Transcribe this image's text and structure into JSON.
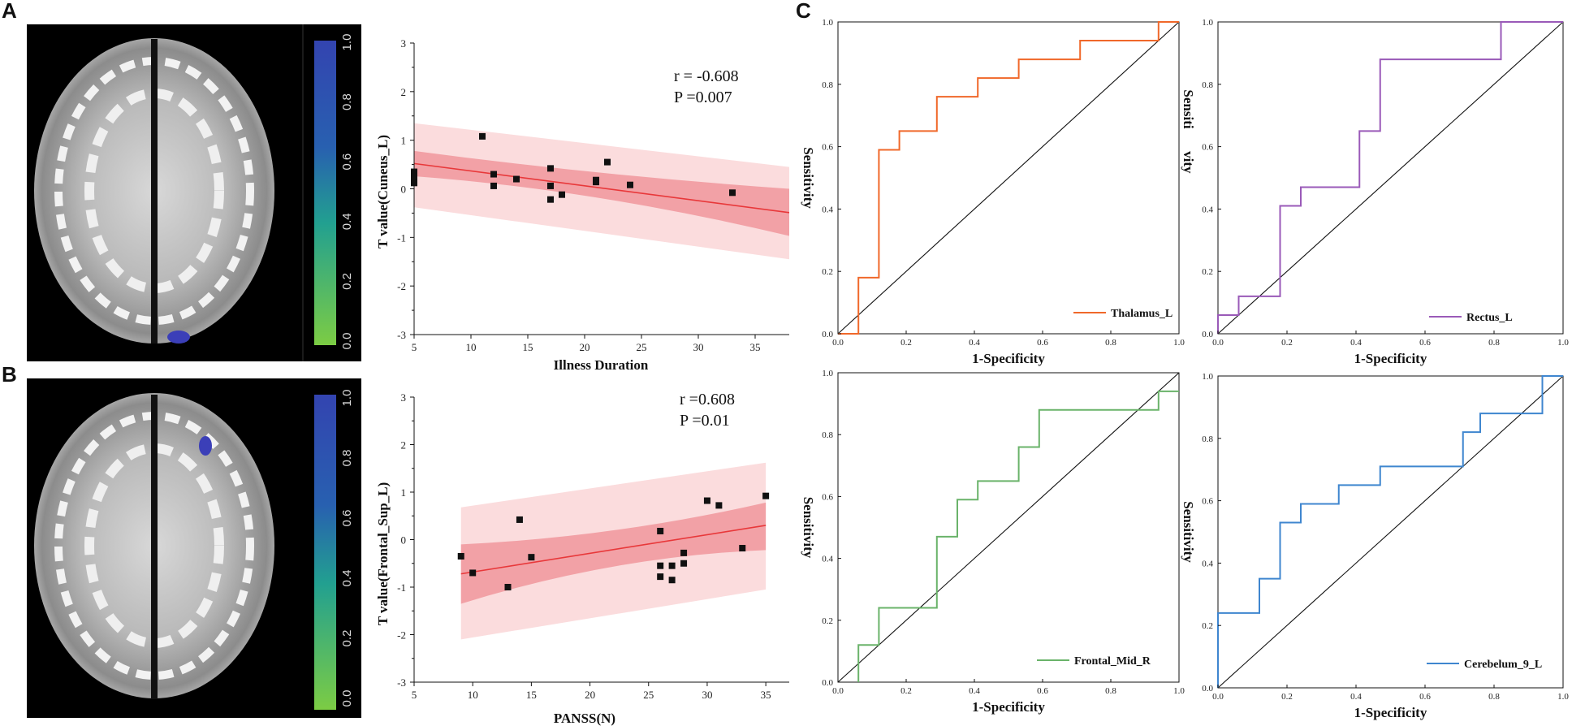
{
  "panels": {
    "a": "A",
    "b": "B",
    "c": "C"
  },
  "colors": {
    "roc_thalamus": "#f0682a",
    "roc_rectus": "#9a5ab8",
    "roc_frontal_mid": "#6ab36a",
    "roc_cerebelum": "#3f86cf",
    "regression_line": "#e8383a",
    "ci_inner": "#f19aa0",
    "ci_outer": "#fbdcdd",
    "colorbar_top": "#3344b0",
    "colorbar_bottom": "#7ccc44"
  },
  "colorbar": {
    "ticks": [
      "0.0",
      "0.2",
      "0.4",
      "0.6",
      "0.8",
      "1.0"
    ]
  },
  "chart_data": [
    {
      "type": "scatter",
      "id": "scatter-a",
      "xlabel": "Illness Duration",
      "ylabel": "T value(Cuneus_L)",
      "xlim": [
        5,
        38
      ],
      "ylim": [
        -3,
        3
      ],
      "xticks": [
        5,
        10,
        15,
        20,
        25,
        30,
        35
      ],
      "yticks": [
        3,
        2,
        1,
        0,
        -1,
        -2,
        -3
      ],
      "stats": [
        "r = -0.608",
        "P =0.007"
      ],
      "points": [
        [
          5,
          0.35
        ],
        [
          5,
          0.25
        ],
        [
          5,
          0.12
        ],
        [
          11,
          1.08
        ],
        [
          12,
          0.3
        ],
        [
          12,
          0.06
        ],
        [
          14,
          0.2
        ],
        [
          17,
          0.42
        ],
        [
          17,
          0.06
        ],
        [
          17,
          -0.22
        ],
        [
          18,
          -0.12
        ],
        [
          21,
          0.18
        ],
        [
          21,
          0.14
        ],
        [
          22,
          0.55
        ],
        [
          24,
          0.08
        ],
        [
          33,
          -0.08
        ]
      ],
      "fit": {
        "x": [
          5,
          38
        ],
        "y": [
          0.52,
          -0.49
        ]
      },
      "ci_inner": {
        "x": [
          5,
          21,
          38
        ],
        "upper": [
          0.78,
          0.28,
          0.0
        ],
        "lower": [
          0.26,
          -0.02,
          -0.97
        ]
      },
      "ci_outer": {
        "x": [
          5,
          38
        ],
        "upper": [
          1.35,
          0.45
        ],
        "lower": [
          -0.38,
          -1.45
        ]
      }
    },
    {
      "type": "scatter",
      "id": "scatter-b",
      "xlabel": "PANSS(N)",
      "ylabel": "T value(Frontal_Sup_L)",
      "xlim": [
        5,
        37
      ],
      "ylim": [
        -3,
        3
      ],
      "xticks": [
        5,
        10,
        15,
        20,
        25,
        30,
        35
      ],
      "yticks": [
        3,
        2,
        1,
        0,
        -1,
        -2,
        -3
      ],
      "stats": [
        "r =0.608",
        "P =0.01"
      ],
      "points": [
        [
          9,
          -0.35
        ],
        [
          10,
          -0.7
        ],
        [
          13,
          -1.0
        ],
        [
          14,
          0.42
        ],
        [
          15,
          -0.37
        ],
        [
          26,
          0.18
        ],
        [
          26,
          -0.55
        ],
        [
          26,
          -0.78
        ],
        [
          27,
          -0.55
        ],
        [
          27,
          -0.85
        ],
        [
          28,
          -0.5
        ],
        [
          28,
          -0.28
        ],
        [
          30,
          0.82
        ],
        [
          31,
          0.72
        ],
        [
          33,
          -0.18
        ],
        [
          35,
          0.92
        ]
      ],
      "fit": {
        "x": [
          9,
          35
        ],
        "y": [
          -0.72,
          0.3
        ]
      },
      "ci_inner": {
        "x": [
          9,
          22,
          35
        ],
        "upper": [
          -0.1,
          0.05,
          0.78
        ],
        "lower": [
          -1.35,
          -0.35,
          -0.22
        ]
      },
      "ci_outer": {
        "x": [
          9,
          35
        ],
        "upper": [
          0.68,
          1.62
        ],
        "lower": [
          -2.1,
          -1.05
        ]
      }
    },
    {
      "type": "line",
      "id": "roc-thalamus",
      "legend": "Thalamus_L",
      "xlabel": "1-Specificity",
      "ylabel": "Sensitivity",
      "xticks": [
        "0.0",
        "0.2",
        "0.4",
        "0.6",
        "0.8",
        "1.0"
      ],
      "yticks": [
        "0.0",
        "0.2",
        "0.4",
        "0.6",
        "0.8",
        "1.0"
      ],
      "x": [
        0,
        0.06,
        0.06,
        0.12,
        0.12,
        0.18,
        0.18,
        0.29,
        0.29,
        0.41,
        0.41,
        0.53,
        0.53,
        0.71,
        0.71,
        0.94,
        0.94,
        1
      ],
      "y": [
        0,
        0,
        0.18,
        0.18,
        0.59,
        0.59,
        0.65,
        0.65,
        0.76,
        0.76,
        0.82,
        0.82,
        0.88,
        0.88,
        0.94,
        0.94,
        1,
        1
      ]
    },
    {
      "type": "line",
      "id": "roc-rectus",
      "legend": "Rectus_L",
      "xlabel": "1-Specificity",
      "ylabel": "Sensitivity",
      "ylabel_parts": [
        "vity",
        "Sensiti"
      ],
      "xticks": [
        "0.0",
        "0.2",
        "0.4",
        "0.6",
        "0.8",
        "1.0"
      ],
      "yticks": [
        "0.0",
        "0.2",
        "0.4",
        "0.6",
        "0.8",
        "1.0"
      ],
      "x": [
        0,
        0,
        0.06,
        0.06,
        0.18,
        0.18,
        0.24,
        0.24,
        0.41,
        0.41,
        0.47,
        0.47,
        0.82,
        0.82,
        1
      ],
      "y": [
        0,
        0.06,
        0.06,
        0.12,
        0.12,
        0.41,
        0.41,
        0.47,
        0.47,
        0.65,
        0.65,
        0.88,
        0.88,
        1,
        1
      ]
    },
    {
      "type": "line",
      "id": "roc-frontal-mid",
      "legend": "Frontal_Mid_R",
      "xlabel": "1-Specificity",
      "ylabel": "Sensitivity",
      "xticks": [
        "0.0",
        "0.2",
        "0.4",
        "0.6",
        "0.8",
        "1.0"
      ],
      "yticks": [
        "0.0",
        "0.2",
        "0.4",
        "0.6",
        "0.8",
        "1.0"
      ],
      "x": [
        0.06,
        0.06,
        0.12,
        0.12,
        0.29,
        0.29,
        0.35,
        0.35,
        0.41,
        0.41,
        0.53,
        0.53,
        0.59,
        0.59,
        0.94,
        0.94,
        1
      ],
      "y": [
        0,
        0.12,
        0.12,
        0.24,
        0.24,
        0.47,
        0.47,
        0.59,
        0.59,
        0.65,
        0.65,
        0.76,
        0.76,
        0.88,
        0.88,
        0.94,
        0.94
      ]
    },
    {
      "type": "line",
      "id": "roc-cerebelum",
      "legend": "Cerebelum_9_L",
      "xlabel": "1-Specificity",
      "ylabel": "Sensitivity",
      "xticks": [
        "0.0",
        "0.2",
        "0.4",
        "0.6",
        "0.8",
        "1.0"
      ],
      "yticks": [
        "0.0",
        "0.2",
        "0.4",
        "0.6",
        "0.8",
        "1.0"
      ],
      "x": [
        0,
        0,
        0.12,
        0.12,
        0.18,
        0.18,
        0.24,
        0.24,
        0.35,
        0.35,
        0.47,
        0.47,
        0.71,
        0.71,
        0.76,
        0.76,
        0.94,
        0.94,
        1
      ],
      "y": [
        0,
        0.24,
        0.24,
        0.35,
        0.35,
        0.53,
        0.53,
        0.59,
        0.59,
        0.65,
        0.65,
        0.71,
        0.71,
        0.82,
        0.82,
        0.88,
        0.88,
        1,
        1
      ]
    }
  ]
}
